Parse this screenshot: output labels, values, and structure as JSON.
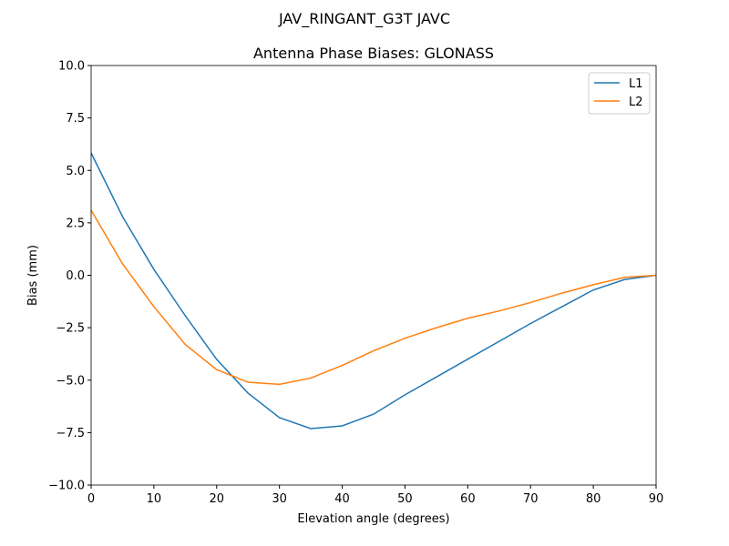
{
  "figure_title": "JAV_RINGANT_G3T JAVC",
  "chart_data": {
    "type": "line",
    "title": "Antenna Phase Biases: GLONASS",
    "xlabel": "Elevation angle (degrees)",
    "ylabel": "Bias (mm)",
    "xlim": [
      0,
      90
    ],
    "ylim": [
      -10,
      10
    ],
    "xticks": [
      0,
      10,
      20,
      30,
      40,
      50,
      60,
      70,
      80,
      90
    ],
    "yticks": [
      -10.0,
      -7.5,
      -5.0,
      -2.5,
      0.0,
      2.5,
      5.0,
      7.5,
      10.0
    ],
    "ytick_labels": [
      "−10.0",
      "−7.5",
      "−5.0",
      "−2.5",
      "0.0",
      "2.5",
      "5.0",
      "7.5",
      "10.0"
    ],
    "grid": false,
    "legend_position": "top-right",
    "x": [
      0,
      5,
      10,
      15,
      20,
      25,
      30,
      35,
      40,
      45,
      50,
      55,
      60,
      65,
      70,
      75,
      80,
      85,
      90
    ],
    "series": [
      {
        "name": "L1",
        "color": "#1f77b4",
        "values": [
          5.83,
          2.8,
          0.28,
          -1.93,
          -4.01,
          -5.62,
          -6.79,
          -7.31,
          -7.18,
          -6.62,
          -5.7,
          -4.85,
          -4.0,
          -3.15,
          -2.3,
          -1.5,
          -0.7,
          -0.2,
          0.0
        ]
      },
      {
        "name": "L2",
        "color": "#ff7f0e",
        "values": [
          3.1,
          0.55,
          -1.5,
          -3.3,
          -4.5,
          -5.1,
          -5.2,
          -4.9,
          -4.3,
          -3.6,
          -3.0,
          -2.5,
          -2.05,
          -1.7,
          -1.3,
          -0.85,
          -0.45,
          -0.1,
          0.0
        ]
      }
    ]
  }
}
